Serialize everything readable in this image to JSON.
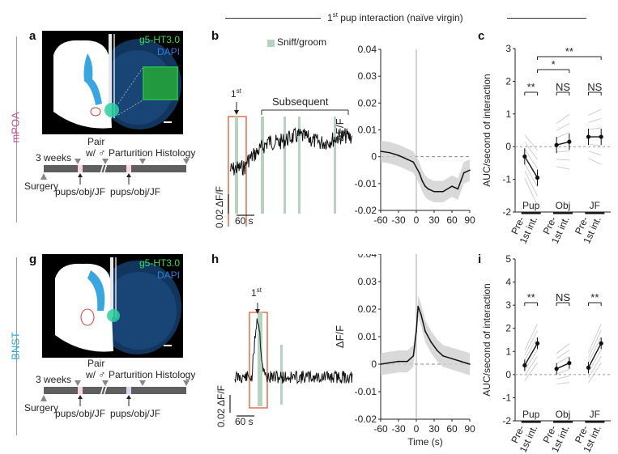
{
  "figure": {
    "header_title_base": "1",
    "header_title_sup": "st",
    "header_title_rest": " pup interaction (naïve virgin)",
    "rows": [
      {
        "id": "top",
        "region_label": "mPOA",
        "region_color": "#c0509b",
        "panel_brain": "a",
        "panel_trace": "b",
        "panel_auc": "c",
        "brain_labels": {
          "sensor": "g5-HT3.0",
          "stain": "DAPI"
        },
        "timeline": {
          "weeks": "3 weeks",
          "pair_line1": "Pair",
          "pair_line2": "w/ ♂",
          "parturition": "Parturition",
          "histology": "Histology",
          "surgery": "Surgery",
          "test1": "pups/obj/JF",
          "test2": "pups/obj/JF"
        },
        "trace": {
          "legend": "Sniff/groom",
          "first_base": "1",
          "first_sup": "st",
          "subsequent": "Subsequent",
          "scale_y": "0.02 ΔF/F",
          "scale_x": "60 s"
        },
        "significance": [
          "**",
          "NS",
          "NS",
          "*",
          "**"
        ]
      },
      {
        "id": "bottom",
        "region_label": "BNST",
        "region_color": "#2aa8d8",
        "panel_brain": "g",
        "panel_trace": "h",
        "panel_auc": "i",
        "brain_labels": {
          "sensor": "g5-HT3.0",
          "stain": "DAPI"
        },
        "timeline": {
          "weeks": "3 weeks",
          "pair_line1": "Pair",
          "pair_line2": "w/ ♂",
          "parturition": "Parturition",
          "histology": "Histology",
          "surgery": "Surgery",
          "test1": "pups/obj/JF",
          "test2": "pups/obj/JF"
        },
        "trace": {
          "first_base": "1",
          "first_sup": "st",
          "scale_y": "0.02 ΔF/F",
          "scale_x": "60 s"
        },
        "significance": [
          "**",
          "NS",
          "**"
        ]
      }
    ]
  },
  "chart_data": [
    {
      "type": "line",
      "panel": "b-right",
      "ylabel": "ΔF/F",
      "xlabel": "",
      "ylim": [
        -0.02,
        0.04
      ],
      "xlim": [
        -60,
        90
      ],
      "yticks": [
        "0.04",
        "0.03",
        "0.02",
        "0.01",
        "0",
        "-0.01",
        "-0.02"
      ],
      "xticks": [
        "-60",
        "-30",
        "0",
        "30",
        "60",
        "90"
      ],
      "x": [
        -60,
        -45,
        -30,
        -15,
        -5,
        0,
        5,
        10,
        15,
        20,
        30,
        45,
        60,
        70,
        80,
        90
      ],
      "y": [
        0.002,
        0.0015,
        0.0005,
        -0.001,
        -0.002,
        -0.004,
        -0.006,
        -0.009,
        -0.011,
        -0.012,
        -0.013,
        -0.013,
        -0.011,
        -0.012,
        -0.006,
        -0.005
      ]
    },
    {
      "type": "line",
      "panel": "h-right",
      "ylabel": "ΔF/F",
      "xlabel": "Time (s)",
      "ylim": [
        -0.02,
        0.04
      ],
      "xlim": [
        -60,
        90
      ],
      "yticks": [
        "0.04",
        "0.03",
        "0.02",
        "0.01",
        "0",
        "-0.01",
        "-0.02"
      ],
      "xticks": [
        "-60",
        "-30",
        "0",
        "30",
        "60",
        "90"
      ],
      "x": [
        -60,
        -45,
        -30,
        -15,
        -5,
        0,
        3,
        8,
        15,
        25,
        35,
        45,
        60,
        75,
        90
      ],
      "y": [
        0.0,
        0.0005,
        0.001,
        0.001,
        0.003,
        0.012,
        0.021,
        0.018,
        0.012,
        0.008,
        0.005,
        0.003,
        0.002,
        0.001,
        0.0
      ]
    },
    {
      "type": "scatter",
      "panel": "c",
      "ylabel": "AUC/second of interaction",
      "ylim": [
        -2,
        3
      ],
      "yticks": [
        "3",
        "2",
        "1",
        "0",
        "-1",
        "-2"
      ],
      "groups": [
        "Pup",
        "Obj",
        "JF"
      ],
      "conditions": [
        "Pre-",
        "1st int."
      ],
      "series": [
        {
          "name": "Pre-",
          "values": [
            -0.3,
            0.05,
            0.3
          ]
        },
        {
          "name": "1st int.",
          "values": [
            -0.95,
            0.15,
            0.3
          ]
        }
      ]
    },
    {
      "type": "scatter",
      "panel": "i",
      "ylabel": "AUC/second of interaction",
      "ylim": [
        -2,
        5
      ],
      "yticks": [
        "5",
        "4",
        "3",
        "2",
        "1",
        "0",
        "-1",
        "-2"
      ],
      "groups": [
        "Pup",
        "Obj",
        "JF"
      ],
      "conditions": [
        "Pre-",
        "1st int."
      ],
      "series": [
        {
          "name": "Pre-",
          "values": [
            0.4,
            0.25,
            0.3
          ]
        },
        {
          "name": "1st int.",
          "values": [
            1.35,
            0.5,
            1.35
          ]
        }
      ]
    }
  ]
}
